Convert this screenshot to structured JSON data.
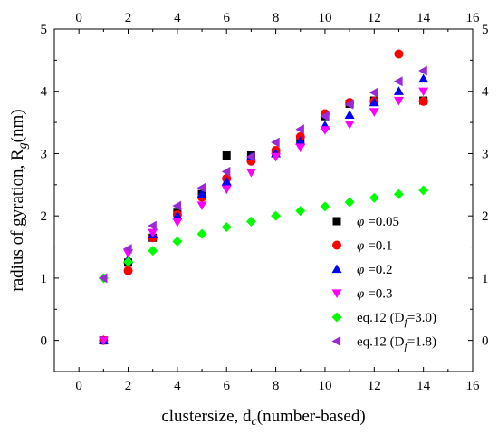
{
  "chart_data": {
    "type": "scatter",
    "xlabel": "clustersize, d",
    "xlabel_sub": "c",
    "xlabel_suffix": "(number-based)",
    "ylabel": "radius of gyration, R",
    "ylabel_sub": "g",
    "ylabel_suffix": "(nm)",
    "xlim": [
      -1,
      16
    ],
    "ylim": [
      -0.5,
      5
    ],
    "x_ticks": [
      0,
      2,
      4,
      6,
      8,
      10,
      12,
      14,
      16
    ],
    "y_ticks": [
      0,
      1,
      2,
      3,
      4,
      5
    ],
    "mirror_axes": true,
    "legend_position": "lower-right",
    "series": [
      {
        "name": "=0.05",
        "name_prefix": "φ",
        "marker": "square",
        "color": "#000000",
        "points": [
          [
            1,
            0.0
          ],
          [
            2,
            1.25
          ],
          [
            3,
            1.65
          ],
          [
            4,
            2.05
          ],
          [
            5,
            2.35
          ],
          [
            6,
            2.97
          ],
          [
            7,
            2.97
          ],
          [
            8,
            3.02
          ],
          [
            9,
            3.2
          ],
          [
            10,
            3.6
          ],
          [
            11,
            3.8
          ],
          [
            12,
            3.85
          ],
          [
            14,
            3.85
          ]
        ]
      },
      {
        "name": "=0.1",
        "name_prefix": "φ",
        "marker": "circle",
        "color": "#ff0000",
        "points": [
          [
            1,
            0.0
          ],
          [
            2,
            1.12
          ],
          [
            3,
            1.65
          ],
          [
            4,
            2.02
          ],
          [
            5,
            2.3
          ],
          [
            6,
            2.6
          ],
          [
            7,
            2.88
          ],
          [
            8,
            3.05
          ],
          [
            9,
            3.27
          ],
          [
            10,
            3.64
          ],
          [
            11,
            3.82
          ],
          [
            12,
            3.84
          ],
          [
            13,
            4.6
          ],
          [
            14,
            3.84
          ]
        ]
      },
      {
        "name": "=0.2",
        "name_prefix": "φ",
        "marker": "triangle-up",
        "color": "#0000ff",
        "points": [
          [
            1,
            0.0
          ],
          [
            2,
            1.3
          ],
          [
            3,
            1.7
          ],
          [
            4,
            2.0
          ],
          [
            5,
            2.35
          ],
          [
            6,
            2.55
          ],
          [
            7,
            2.95
          ],
          [
            8,
            3.0
          ],
          [
            9,
            3.2
          ],
          [
            10,
            3.45
          ],
          [
            11,
            3.62
          ],
          [
            12,
            3.82
          ],
          [
            13,
            4.0
          ],
          [
            14,
            4.2
          ]
        ]
      },
      {
        "name": "=0.3",
        "name_prefix": "φ",
        "marker": "triangle-down",
        "color": "#ff00ff",
        "points": [
          [
            1,
            0.0
          ],
          [
            2,
            1.4
          ],
          [
            3,
            1.73
          ],
          [
            4,
            1.9
          ],
          [
            5,
            2.17
          ],
          [
            6,
            2.43
          ],
          [
            7,
            2.7
          ],
          [
            8,
            2.95
          ],
          [
            9,
            3.1
          ],
          [
            10,
            3.38
          ],
          [
            11,
            3.47
          ],
          [
            12,
            3.67
          ],
          [
            13,
            3.85
          ],
          [
            14,
            4.0
          ]
        ]
      },
      {
        "name": "=3.0)",
        "name_prefix": "eq.12 (D",
        "name_sub": "f",
        "marker": "diamond",
        "color": "#00ff00",
        "points": [
          [
            1,
            1.0
          ],
          [
            2,
            1.26
          ],
          [
            3,
            1.44
          ],
          [
            4,
            1.59
          ],
          [
            5,
            1.71
          ],
          [
            6,
            1.82
          ],
          [
            7,
            1.91
          ],
          [
            8,
            2.0
          ],
          [
            9,
            2.08
          ],
          [
            10,
            2.15
          ],
          [
            11,
            2.22
          ],
          [
            12,
            2.29
          ],
          [
            13,
            2.35
          ],
          [
            14,
            2.41
          ]
        ]
      },
      {
        "name": "=1.8)",
        "name_prefix": "eq.12 (D",
        "name_sub": "f",
        "marker": "triangle-left",
        "color": "#9a2ad6",
        "points": [
          [
            1,
            1.0
          ],
          [
            2,
            1.47
          ],
          [
            3,
            1.84
          ],
          [
            4,
            2.16
          ],
          [
            5,
            2.45
          ],
          [
            6,
            2.71
          ],
          [
            7,
            2.95
          ],
          [
            8,
            3.18
          ],
          [
            9,
            3.39
          ],
          [
            10,
            3.6
          ],
          [
            11,
            3.79
          ],
          [
            12,
            3.98
          ],
          [
            13,
            4.16
          ],
          [
            14,
            4.33
          ]
        ]
      }
    ]
  }
}
